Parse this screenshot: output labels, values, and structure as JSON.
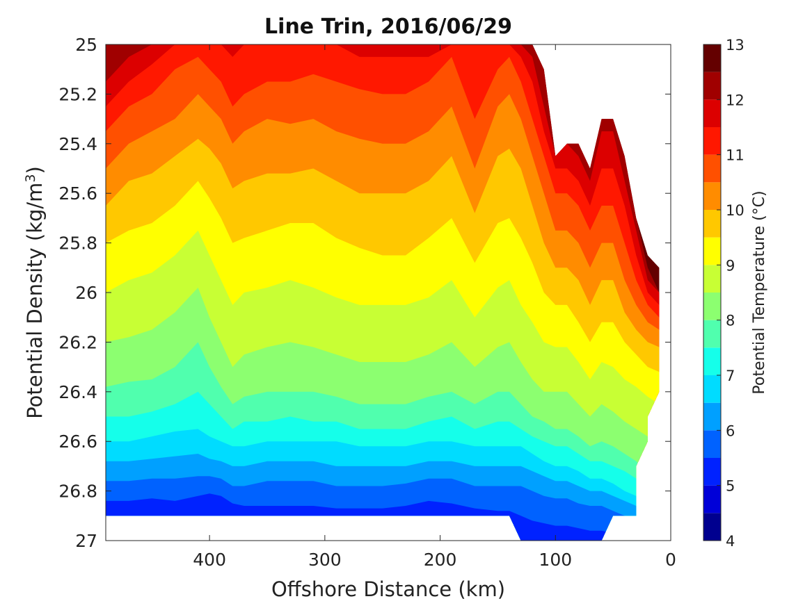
{
  "chart_data": {
    "type": "heatmap",
    "subtype": "filled-contour",
    "title": "Line Trin, 2016/06/29",
    "xlabel": "Offshore Distance (km)",
    "ylabel": "Potential Density (kg/m",
    "ylabel_sup": "3",
    "ylabel_end": ")",
    "colorbar_label": "Potential Temperature (°C)",
    "xlim": [
      490,
      0
    ],
    "ylim": [
      25,
      27
    ],
    "y_reversed": true,
    "x_ticks": [
      400,
      300,
      200,
      100,
      0
    ],
    "x_tick_labels": [
      "400",
      "300",
      "200",
      "100",
      "0"
    ],
    "y_ticks": [
      25,
      25.2,
      25.4,
      25.6,
      25.8,
      26,
      26.2,
      26.4,
      26.6,
      26.8,
      27
    ],
    "y_tick_labels": [
      "25",
      "25.2",
      "25.4",
      "25.6",
      "25.8",
      "26",
      "26.2",
      "26.4",
      "26.6",
      "26.8",
      "27"
    ],
    "colorbar_ticks": [
      4,
      5,
      6,
      7,
      8,
      9,
      10,
      11,
      12,
      13
    ],
    "colorbar_tick_labels": [
      "4",
      "5",
      "6",
      "7",
      "8",
      "9",
      "10",
      "11",
      "12",
      "13"
    ],
    "colorbar_levels": [
      4,
      4.5,
      5,
      5.5,
      6,
      6.5,
      7,
      7.5,
      8,
      8.5,
      9,
      9.5,
      10,
      10.5,
      11,
      11.5,
      12,
      12.5,
      13
    ],
    "colorbar_colors": [
      "#00008f",
      "#0000d8",
      "#0022ff",
      "#0062ff",
      "#00a0ff",
      "#00dcff",
      "#15ffea",
      "#50ffae",
      "#8cff70",
      "#c8ff34",
      "#ffff00",
      "#ffc800",
      "#ff8c00",
      "#ff5000",
      "#ff1800",
      "#dc0000",
      "#a00000",
      "#640000"
    ],
    "grid": false,
    "contour_isopycnals": {
      "x": [
        490,
        470,
        450,
        430,
        410,
        400,
        390,
        380,
        370,
        350,
        330,
        310,
        290,
        270,
        250,
        230,
        210,
        190,
        170,
        150,
        140,
        130,
        120,
        110,
        100,
        90,
        80,
        70,
        60,
        50,
        40,
        30,
        20,
        10
      ],
      "levels": [
        {
          "t": 12.5,
          "d": [
            25.0,
            25.0,
            25.0,
            25.0,
            25.0,
            25.0,
            25.0,
            25.0,
            25.0,
            25.0,
            25.0,
            25.0,
            25.0,
            25.0,
            25.0,
            25.0,
            25.0,
            25.0,
            25.0,
            25.0,
            25.0,
            25.0,
            25.0,
            25.0,
            25.0,
            25.0,
            25.0,
            25.0,
            25.3,
            25.3,
            25.45,
            25.7,
            25.9,
            26.0
          ]
        },
        {
          "t": 12.0,
          "d": [
            25.15,
            25.05,
            25.0,
            25.0,
            25.0,
            25.0,
            25.0,
            25.0,
            25.0,
            25.0,
            25.0,
            25.0,
            25.0,
            25.0,
            25.0,
            25.0,
            25.0,
            25.0,
            25.0,
            25.0,
            25.0,
            25.0,
            25.05,
            25.25,
            25.45,
            25.4,
            25.45,
            25.55,
            25.35,
            25.35,
            25.55,
            25.75,
            25.95,
            26.0
          ]
        },
        {
          "t": 11.5,
          "d": [
            25.25,
            25.15,
            25.08,
            25.0,
            25.0,
            25.0,
            25.0,
            25.05,
            25.0,
            25.0,
            25.0,
            25.0,
            25.0,
            25.05,
            25.05,
            25.05,
            25.05,
            25.0,
            25.0,
            25.0,
            25.0,
            25.05,
            25.15,
            25.35,
            25.5,
            25.5,
            25.55,
            25.65,
            25.5,
            25.5,
            25.65,
            25.85,
            26.0,
            26.05
          ]
        },
        {
          "t": 11.0,
          "d": [
            25.35,
            25.25,
            25.2,
            25.1,
            25.05,
            25.1,
            25.15,
            25.25,
            25.2,
            25.15,
            25.15,
            25.12,
            25.15,
            25.18,
            25.2,
            25.2,
            25.15,
            25.05,
            25.3,
            25.1,
            25.05,
            25.15,
            25.3,
            25.45,
            25.6,
            25.6,
            25.65,
            25.75,
            25.65,
            25.65,
            25.8,
            25.95,
            26.05,
            26.1
          ]
        },
        {
          "t": 10.5,
          "d": [
            25.5,
            25.4,
            25.35,
            25.3,
            25.2,
            25.25,
            25.3,
            25.4,
            25.35,
            25.3,
            25.32,
            25.3,
            25.35,
            25.38,
            25.4,
            25.4,
            25.35,
            25.25,
            25.5,
            25.25,
            25.2,
            25.3,
            25.45,
            25.6,
            25.75,
            25.75,
            25.8,
            25.9,
            25.8,
            25.8,
            25.95,
            26.05,
            26.12,
            26.15
          ]
        },
        {
          "t": 10.0,
          "d": [
            25.65,
            25.55,
            25.52,
            25.45,
            25.38,
            25.42,
            25.48,
            25.58,
            25.55,
            25.52,
            25.52,
            25.5,
            25.55,
            25.6,
            25.6,
            25.6,
            25.55,
            25.45,
            25.68,
            25.45,
            25.42,
            25.5,
            25.65,
            25.8,
            25.9,
            25.9,
            25.95,
            26.05,
            25.95,
            25.95,
            26.08,
            26.15,
            26.2,
            26.22
          ]
        },
        {
          "t": 9.5,
          "d": [
            25.8,
            25.75,
            25.72,
            25.65,
            25.55,
            25.62,
            25.7,
            25.8,
            25.78,
            25.75,
            25.72,
            25.72,
            25.78,
            25.82,
            25.85,
            25.85,
            25.78,
            25.7,
            25.88,
            25.72,
            25.7,
            25.78,
            25.88,
            26.0,
            26.05,
            26.05,
            26.12,
            26.2,
            26.12,
            26.12,
            26.2,
            26.25,
            26.3,
            26.32
          ]
        },
        {
          "t": 9.0,
          "d": [
            26.0,
            25.95,
            25.92,
            25.85,
            25.75,
            25.85,
            25.95,
            26.05,
            26.0,
            25.98,
            25.95,
            25.98,
            26.02,
            26.05,
            26.05,
            26.05,
            26.02,
            25.95,
            26.1,
            25.98,
            25.95,
            26.05,
            26.12,
            26.2,
            26.22,
            26.22,
            26.28,
            26.35,
            26.28,
            26.3,
            26.35,
            26.38,
            26.42,
            26.45
          ]
        },
        {
          "t": 8.5,
          "d": [
            26.2,
            26.18,
            26.15,
            26.08,
            25.98,
            26.1,
            26.2,
            26.3,
            26.25,
            26.22,
            26.2,
            26.22,
            26.25,
            26.28,
            26.28,
            26.28,
            26.25,
            26.2,
            26.3,
            26.22,
            26.2,
            26.28,
            26.35,
            26.4,
            26.4,
            26.4,
            26.45,
            26.5,
            26.45,
            26.48,
            26.52,
            26.55,
            26.58,
            26.6
          ]
        },
        {
          "t": 8.0,
          "d": [
            26.38,
            26.36,
            26.35,
            26.3,
            26.2,
            26.3,
            26.38,
            26.45,
            26.42,
            26.4,
            26.4,
            26.4,
            26.42,
            26.45,
            26.45,
            26.45,
            26.42,
            26.4,
            26.45,
            26.4,
            26.4,
            26.45,
            26.5,
            26.52,
            26.55,
            26.55,
            26.58,
            26.62,
            26.6,
            26.62,
            26.65,
            26.68,
            26.72,
            26.75
          ]
        },
        {
          "t": 7.5,
          "d": [
            26.5,
            26.5,
            26.48,
            26.45,
            26.4,
            26.45,
            26.5,
            26.55,
            26.52,
            26.52,
            26.5,
            26.52,
            26.52,
            26.55,
            26.55,
            26.55,
            26.52,
            26.5,
            26.55,
            26.52,
            26.52,
            26.55,
            26.58,
            26.6,
            26.62,
            26.62,
            26.65,
            26.68,
            26.68,
            26.7,
            26.72,
            26.75,
            26.8,
            26.82
          ]
        },
        {
          "t": 7.0,
          "d": [
            26.6,
            26.6,
            26.58,
            26.56,
            26.55,
            26.58,
            26.6,
            26.62,
            26.62,
            26.6,
            26.6,
            26.6,
            26.6,
            26.62,
            26.62,
            26.62,
            26.6,
            26.6,
            26.62,
            26.62,
            26.62,
            26.62,
            26.65,
            26.68,
            26.7,
            26.7,
            26.72,
            26.75,
            26.75,
            26.77,
            26.8,
            26.82,
            26.85,
            26.88
          ]
        },
        {
          "t": 6.5,
          "d": [
            26.68,
            26.68,
            26.67,
            26.66,
            26.65,
            26.67,
            26.68,
            26.7,
            26.7,
            26.68,
            26.68,
            26.68,
            26.7,
            26.7,
            26.7,
            26.7,
            26.68,
            26.68,
            26.7,
            26.7,
            26.7,
            26.7,
            26.72,
            26.74,
            26.76,
            26.76,
            26.78,
            26.8,
            26.8,
            26.82,
            26.84,
            26.86,
            26.9,
            26.92
          ]
        },
        {
          "t": 6.0,
          "d": [
            26.76,
            26.76,
            26.75,
            26.75,
            26.74,
            26.74,
            26.75,
            26.78,
            26.78,
            26.76,
            26.76,
            26.76,
            26.78,
            26.78,
            26.78,
            26.77,
            26.75,
            26.75,
            26.78,
            26.78,
            26.78,
            26.78,
            26.8,
            26.82,
            26.83,
            26.83,
            26.85,
            26.86,
            26.86,
            26.88,
            26.9,
            26.92,
            26.95,
            26.97
          ]
        },
        {
          "t": 5.5,
          "d": [
            26.84,
            26.84,
            26.83,
            26.84,
            26.82,
            26.81,
            26.82,
            26.85,
            26.86,
            26.86,
            26.86,
            26.86,
            26.87,
            26.87,
            26.87,
            26.86,
            26.84,
            26.85,
            26.87,
            26.88,
            26.88,
            26.9,
            26.92,
            26.93,
            26.94,
            26.94,
            26.95,
            26.96,
            26.96,
            26.97,
            26.98,
            26.99,
            27.0,
            27.0
          ]
        }
      ],
      "valid_region_upper": [
        [
          490,
          25
        ],
        [
          120,
          25
        ],
        [
          110,
          25.1
        ],
        [
          100,
          25.45
        ],
        [
          90,
          25.4
        ],
        [
          80,
          25.4
        ],
        [
          70,
          25.5
        ],
        [
          60,
          25.3
        ],
        [
          50,
          25.3
        ],
        [
          40,
          25.45
        ],
        [
          30,
          25.7
        ],
        [
          20,
          25.85
        ],
        [
          10,
          25.9
        ]
      ],
      "valid_region_right": [
        [
          10,
          25.9
        ],
        [
          10,
          26.4
        ],
        [
          20,
          26.5
        ],
        [
          20,
          26.6
        ],
        [
          30,
          26.7
        ],
        [
          30,
          26.9
        ]
      ],
      "valid_region_bottom": [
        [
          30,
          26.9
        ],
        [
          50,
          26.9
        ],
        [
          60,
          27.0
        ],
        [
          130,
          27.0
        ],
        [
          140,
          26.9
        ],
        [
          490,
          26.9
        ]
      ]
    }
  }
}
